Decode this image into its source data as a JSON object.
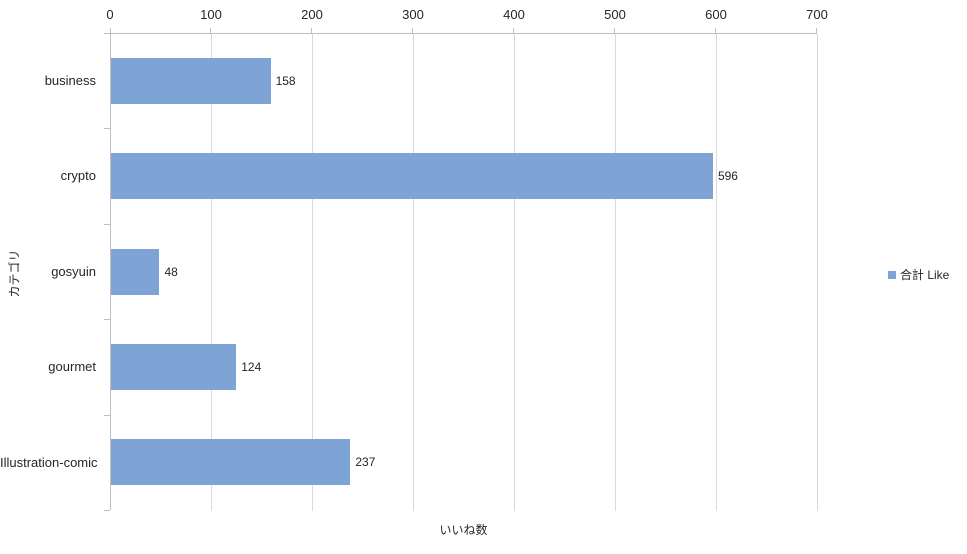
{
  "chart_data": {
    "type": "bar",
    "orientation": "horizontal",
    "title": "",
    "categories": [
      "business",
      "crypto",
      "gosyuin",
      "gourmet",
      "Illustration-comic"
    ],
    "series": [
      {
        "name": "合計 Like",
        "values": [
          158,
          596,
          48,
          124,
          237
        ]
      }
    ],
    "data_labels": [
      "158",
      "596",
      "48",
      "124",
      "237"
    ],
    "xlabel": "いいね数",
    "ylabel": "カテゴリ",
    "xlim": [
      0,
      700
    ],
    "x_ticks": [
      0,
      100,
      200,
      300,
      400,
      500,
      600,
      700
    ],
    "x_tick_labels": [
      "0",
      "100",
      "200",
      "300",
      "400",
      "500",
      "600",
      "700"
    ],
    "grid": true,
    "legend_position": "right",
    "bar_color": "#7ea4d6",
    "gridline_color": "#d9d9d9",
    "axis_line_color": "#bfbfbf",
    "text_color": "#262626"
  },
  "legend": {
    "label": "合計 Like"
  },
  "axes": {
    "x_title": "いいね数",
    "y_title": "カテゴリ"
  }
}
